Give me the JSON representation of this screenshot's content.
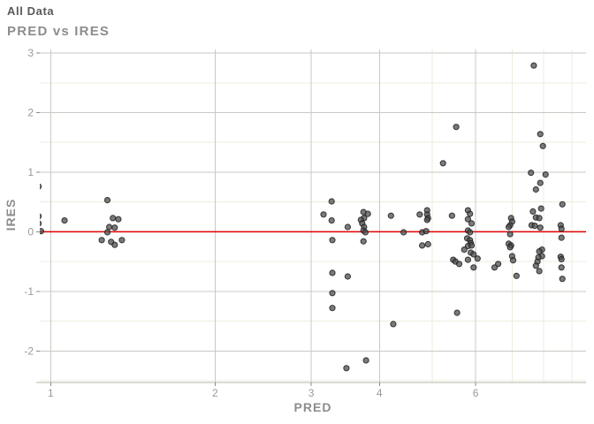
{
  "chart_data": {
    "type": "scatter",
    "title": "All Data",
    "subtitle": "PRED vs IRES",
    "xlabel": "PRED",
    "ylabel": "IRES",
    "x_scale": "log10",
    "xlim": [
      0.955,
      9.56
    ],
    "ylim": [
      -2.53,
      3.06
    ],
    "x_major_ticks": [
      1,
      2,
      3,
      4,
      6
    ],
    "x_minor_gridlines": [
      5,
      7,
      8,
      9
    ],
    "y_major_ticks": [
      3,
      2,
      1,
      0,
      -1,
      -2
    ],
    "y_minor_gridlines": [
      2.5,
      1.5,
      0.5,
      -0.5,
      -1.5,
      -2.5
    ],
    "reference_line_y": 0,
    "grid": "on",
    "legend": "none",
    "points": [
      [
        0.95,
        0.76
      ],
      [
        0.95,
        0.26
      ],
      [
        0.95,
        0.14
      ],
      [
        0.96,
        0.01
      ],
      [
        1.06,
        0.19
      ],
      [
        1.27,
        0.53
      ],
      [
        1.3,
        0.23
      ],
      [
        1.33,
        0.21
      ],
      [
        1.28,
        0.08
      ],
      [
        1.31,
        0.07
      ],
      [
        1.27,
        -0.01
      ],
      [
        1.24,
        -0.14
      ],
      [
        1.29,
        -0.17
      ],
      [
        1.35,
        -0.14
      ],
      [
        1.31,
        -0.22
      ],
      [
        3.27,
        0.51
      ],
      [
        3.16,
        0.29
      ],
      [
        3.27,
        0.19
      ],
      [
        3.5,
        0.08
      ],
      [
        3.74,
        0.33
      ],
      [
        3.81,
        0.3
      ],
      [
        3.75,
        0.23
      ],
      [
        3.7,
        0.2
      ],
      [
        3.72,
        0.14
      ],
      [
        3.75,
        0.08
      ],
      [
        3.74,
        0.02
      ],
      [
        3.77,
        -0.01
      ],
      [
        3.74,
        -0.16
      ],
      [
        3.28,
        -0.14
      ],
      [
        3.28,
        -0.69
      ],
      [
        3.5,
        -0.75
      ],
      [
        3.28,
        -1.03
      ],
      [
        3.28,
        -1.28
      ],
      [
        3.48,
        -2.29
      ],
      [
        3.78,
        -2.16
      ],
      [
        4.2,
        0.27
      ],
      [
        4.74,
        0.29
      ],
      [
        4.89,
        0.36
      ],
      [
        4.89,
        0.29
      ],
      [
        4.91,
        0.23
      ],
      [
        4.89,
        0.2
      ],
      [
        4.43,
        -0.01
      ],
      [
        4.79,
        -0.01
      ],
      [
        4.87,
        0.01
      ],
      [
        4.79,
        -0.23
      ],
      [
        4.91,
        -0.21
      ],
      [
        4.24,
        -1.55
      ],
      [
        5.23,
        1.15
      ],
      [
        5.53,
        1.76
      ],
      [
        5.43,
        0.27
      ],
      [
        5.81,
        0.36
      ],
      [
        5.86,
        0.3
      ],
      [
        5.81,
        0.21
      ],
      [
        5.9,
        0.14
      ],
      [
        5.81,
        0.02
      ],
      [
        5.86,
        -0.01
      ],
      [
        5.79,
        -0.11
      ],
      [
        5.86,
        -0.14
      ],
      [
        5.88,
        -0.19
      ],
      [
        5.81,
        -0.24
      ],
      [
        5.9,
        -0.23
      ],
      [
        5.72,
        -0.3
      ],
      [
        5.88,
        -0.35
      ],
      [
        5.95,
        -0.38
      ],
      [
        5.46,
        -0.47
      ],
      [
        5.51,
        -0.5
      ],
      [
        5.81,
        -0.47
      ],
      [
        6.05,
        -0.45
      ],
      [
        5.6,
        -0.54
      ],
      [
        5.95,
        -0.6
      ],
      [
        5.55,
        -1.36
      ],
      [
        6.6,
        -0.54
      ],
      [
        6.5,
        -0.6
      ],
      [
        7.67,
        2.79
      ],
      [
        7.88,
        1.64
      ],
      [
        7.97,
        1.44
      ],
      [
        7.58,
        0.99
      ],
      [
        8.06,
        0.96
      ],
      [
        7.88,
        0.82
      ],
      [
        7.74,
        0.71
      ],
      [
        7.91,
        0.39
      ],
      [
        7.64,
        0.34
      ],
      [
        7.74,
        0.24
      ],
      [
        7.85,
        0.23
      ],
      [
        6.97,
        0.23
      ],
      [
        7.0,
        0.17
      ],
      [
        6.94,
        0.11
      ],
      [
        6.9,
        0.08
      ],
      [
        7.6,
        0.11
      ],
      [
        7.7,
        0.1
      ],
      [
        7.88,
        0.07
      ],
      [
        6.94,
        -0.04
      ],
      [
        6.9,
        -0.2
      ],
      [
        6.97,
        -0.23
      ],
      [
        6.94,
        -0.26
      ],
      [
        7.0,
        -0.41
      ],
      [
        7.03,
        -0.48
      ],
      [
        7.94,
        -0.3
      ],
      [
        7.85,
        -0.33
      ],
      [
        7.94,
        -0.41
      ],
      [
        7.82,
        -0.43
      ],
      [
        7.79,
        -0.5
      ],
      [
        7.74,
        -0.57
      ],
      [
        7.85,
        -0.66
      ],
      [
        7.13,
        -0.74
      ],
      [
        8.65,
        0.46
      ],
      [
        8.59,
        0.11
      ],
      [
        8.62,
        0.05
      ],
      [
        8.62,
        -0.1
      ],
      [
        8.59,
        -0.42
      ],
      [
        8.62,
        -0.46
      ],
      [
        8.62,
        -0.6
      ],
      [
        8.65,
        -0.79
      ]
    ]
  },
  "colors": {
    "background": "#ffffff",
    "title": "#595959",
    "subtitle": "#8d8d8d",
    "axis_title": "#8d8d8d",
    "tick_label": "#999994",
    "grid_major": "#c9c9c4",
    "grid_minor": "#edecdf",
    "axis_line": "#b4b4ae",
    "tick_mark": "#8a8a8a",
    "point_fill": "#4d4d4d",
    "point_stroke": "#1f1f1f",
    "reference_line": "#e10000"
  }
}
